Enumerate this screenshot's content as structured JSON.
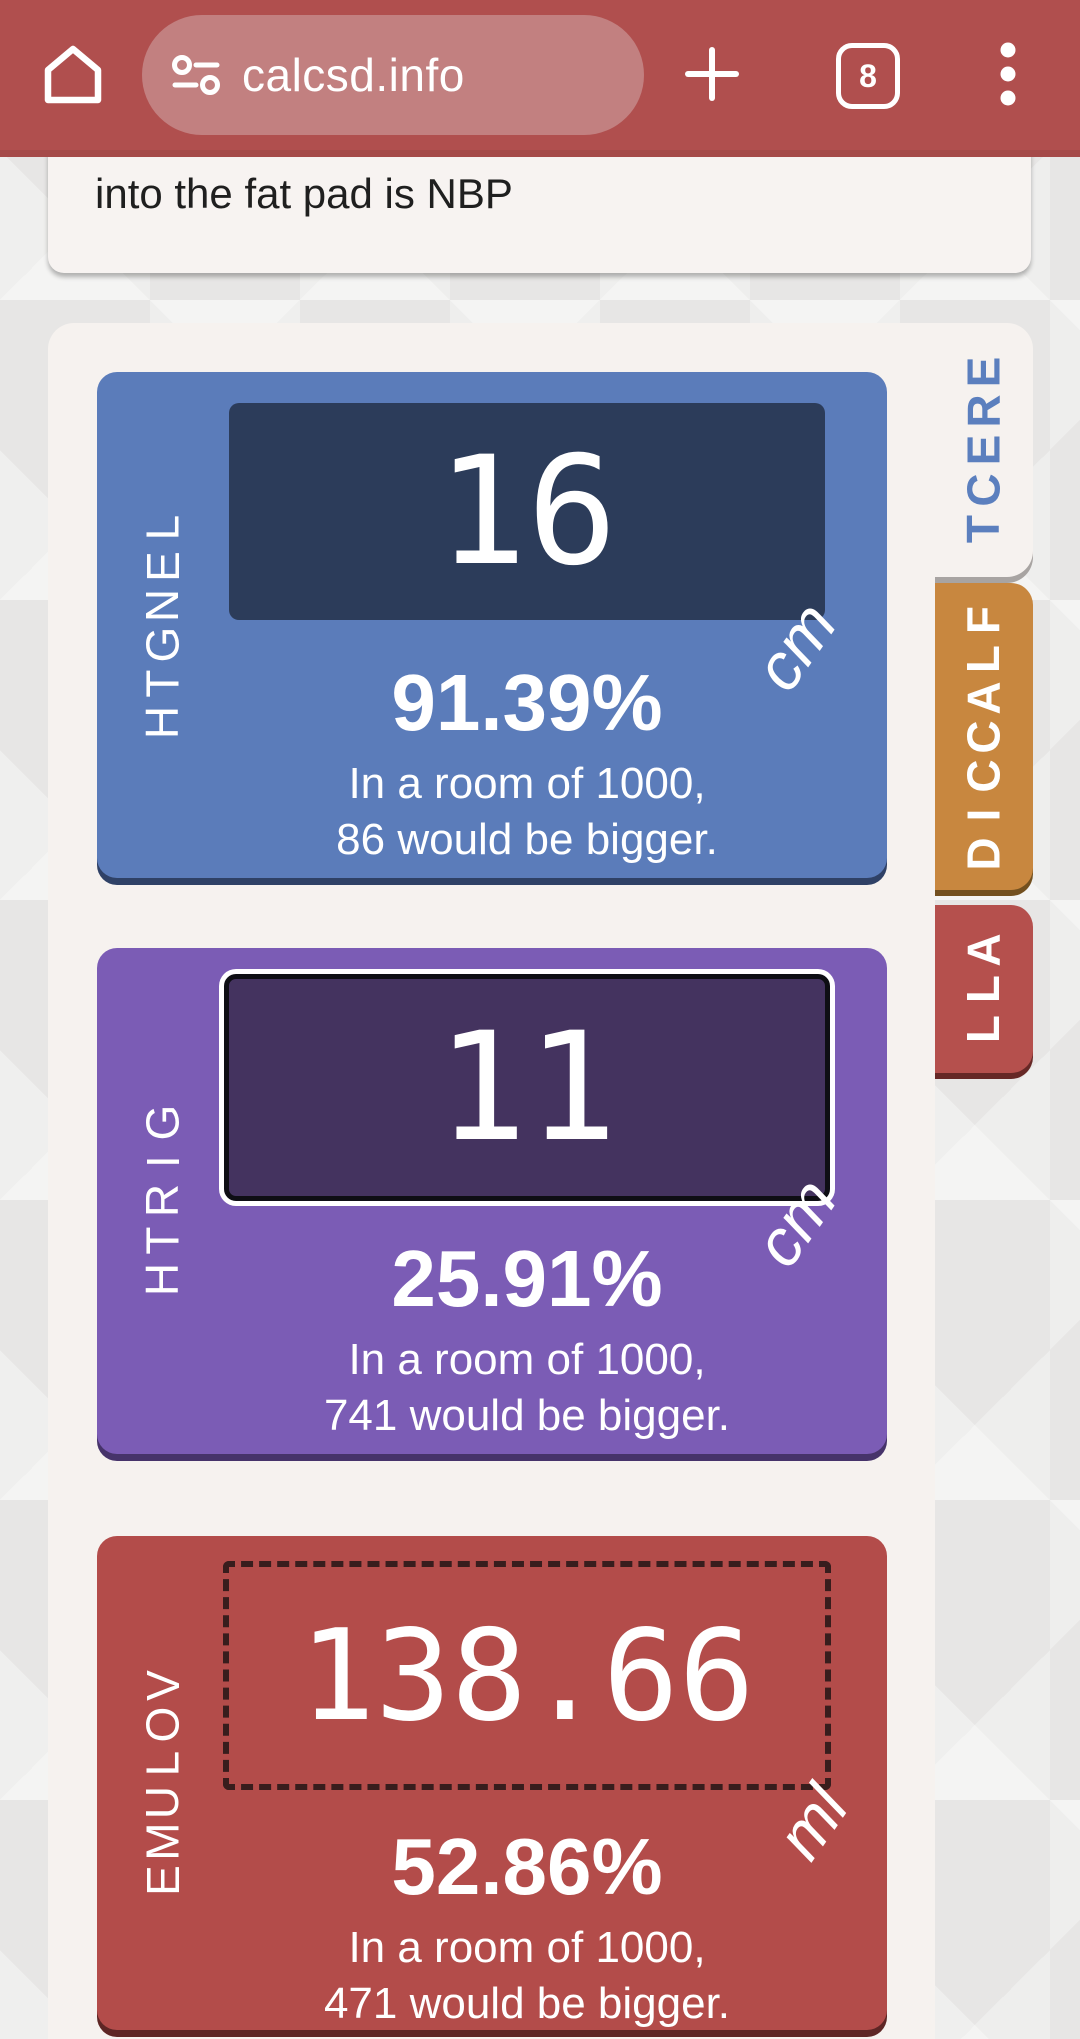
{
  "browser": {
    "url": "calcsd.info",
    "tab_count": "8",
    "icons": {
      "home": "home-icon",
      "site_settings": "tune-icon",
      "new_tab": "plus-icon",
      "tab_switcher": "tab-counter",
      "menu": "kebab-menu-icon"
    }
  },
  "snippet": {
    "text": "into the fat pad is NBP"
  },
  "tabs": [
    {
      "id": "erect",
      "label": "ERECT",
      "active": true,
      "color": "#f6f2ef",
      "text_color": "#5b7fbe"
    },
    {
      "id": "flaccid",
      "label": "FLACCID",
      "active": false,
      "color": "#c8873f",
      "text_color": "#ffffff"
    },
    {
      "id": "all",
      "label": "ALL",
      "active": false,
      "color": "#b5504d",
      "text_color": "#ffffff"
    }
  ],
  "cards": [
    {
      "label": "LENGTH",
      "value": "16",
      "unit": "cm",
      "percent": "91.39%",
      "room_line1": "In a room of 1000,",
      "room_line2": "86 would be bigger.",
      "card_color": "#5b7cba",
      "box_color": "#2c3c5a",
      "box_style": "solid"
    },
    {
      "label": "GIRTH",
      "value": "11",
      "unit": "cm",
      "percent": "25.91%",
      "room_line1": "In a room of 1000,",
      "room_line2": "741 would be bigger.",
      "card_color": "#7b5cb5",
      "box_color": "#44335f",
      "box_style": "focused-outline"
    },
    {
      "label": "VOLUME",
      "value": "138.66",
      "unit": "ml",
      "percent": "52.86%",
      "room_line1": "In a room of 1000,",
      "room_line2": "471 would be bigger.",
      "card_color": "#b34c4a",
      "box_color": "transparent",
      "box_style": "dashed"
    }
  ],
  "colors": {
    "browser_bar": "#b04f4e",
    "url_pill": "#c28080",
    "page_background": "#e7e6e5",
    "panel_background": "#f6f2ef",
    "accent_blue": "#5b7cba",
    "accent_purple": "#7b5cb5",
    "accent_red": "#b34c4a",
    "accent_orange": "#c8873f"
  }
}
